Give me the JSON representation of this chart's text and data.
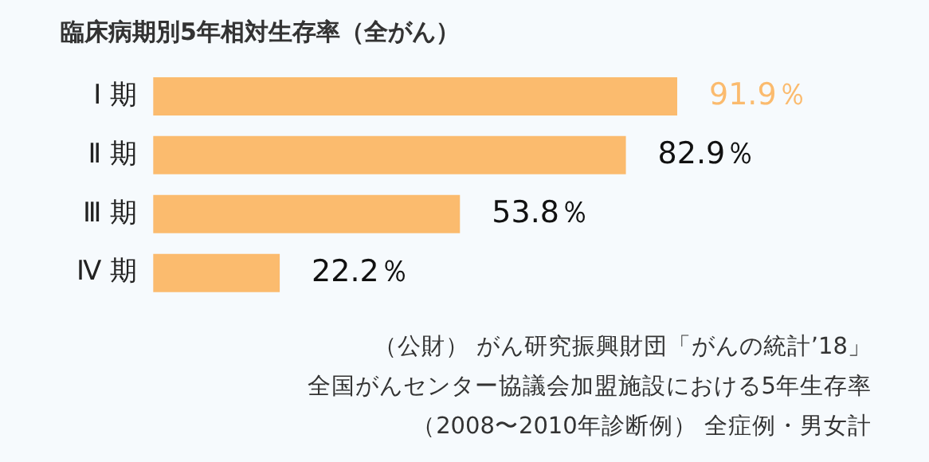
{
  "chart_data": {
    "type": "bar",
    "orientation": "horizontal",
    "title": "臨床病期別5年相対生存率（全がん）",
    "categories": [
      "Ⅰ 期",
      "Ⅱ 期",
      "Ⅲ 期",
      "Ⅳ 期"
    ],
    "values": [
      91.9,
      82.9,
      53.8,
      22.2
    ],
    "color": "#fbbb6e",
    "value_labels": [
      "91.9％",
      "82.9％",
      "53.8％",
      "22.2％"
    ],
    "annotations": [
      "（公財） がん研究振興財団「がんの統計’18」",
      "全国がんセンター協議会加盟施設における5年生存率",
      "（2008〜2010年診断例） 全症例・男女計"
    ],
    "grid": false,
    "legend": false
  }
}
